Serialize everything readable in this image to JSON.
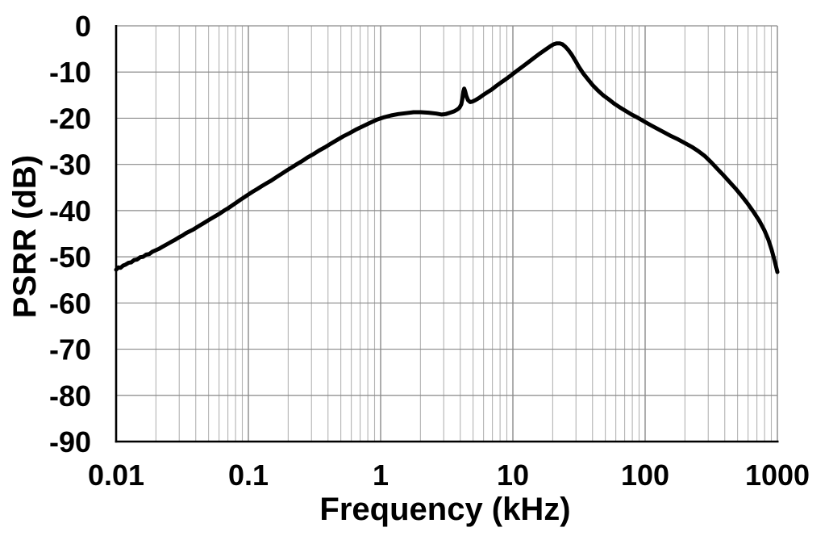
{
  "colors": {
    "background": "#ffffff",
    "curve": "#000000",
    "axis": "#000000",
    "grid_minor": "#b3b3b3",
    "grid_major": "#8a8a8a",
    "text": "#000000"
  },
  "chart_data": {
    "type": "line",
    "title": "",
    "xlabel": "Frequency (kHz)",
    "ylabel": "PSRR (dB)",
    "x_scale": "log",
    "xlim": [
      0.01,
      1000
    ],
    "ylim": [
      -90,
      0
    ],
    "grid": "on",
    "legend": "none",
    "x_ticks": [
      {
        "value": 0.01,
        "label": "0.01"
      },
      {
        "value": 0.1,
        "label": "0.1"
      },
      {
        "value": 1,
        "label": "1"
      },
      {
        "value": 10,
        "label": "10"
      },
      {
        "value": 100,
        "label": "100"
      },
      {
        "value": 1000,
        "label": "1000"
      }
    ],
    "y_ticks": [
      {
        "value": 0,
        "label": "0"
      },
      {
        "value": -10,
        "label": "-10"
      },
      {
        "value": -20,
        "label": "-20"
      },
      {
        "value": -30,
        "label": "-30"
      },
      {
        "value": -40,
        "label": "-40"
      },
      {
        "value": -50,
        "label": "-50"
      },
      {
        "value": -60,
        "label": "-60"
      },
      {
        "value": -70,
        "label": "-70"
      },
      {
        "value": -80,
        "label": "-80"
      },
      {
        "value": -90,
        "label": "-90"
      }
    ],
    "series": [
      {
        "name": "PSRR",
        "points": [
          [
            0.01,
            -52.8
          ],
          [
            0.0104,
            -52.3
          ],
          [
            0.0108,
            -52.4
          ],
          [
            0.0113,
            -51.9
          ],
          [
            0.0118,
            -51.7
          ],
          [
            0.0124,
            -51.3
          ],
          [
            0.013,
            -51.2
          ],
          [
            0.0137,
            -50.7
          ],
          [
            0.0144,
            -50.6
          ],
          [
            0.0152,
            -50.1
          ],
          [
            0.016,
            -50.0
          ],
          [
            0.0169,
            -49.5
          ],
          [
            0.0178,
            -49.4
          ],
          [
            0.0188,
            -48.9
          ],
          [
            0.0199,
            -48.6
          ],
          [
            0.021,
            -48.3
          ],
          [
            0.0222,
            -47.9
          ],
          [
            0.0235,
            -47.5
          ],
          [
            0.0249,
            -47.1
          ],
          [
            0.0264,
            -46.7
          ],
          [
            0.028,
            -46.3
          ],
          [
            0.0298,
            -45.8
          ],
          [
            0.0317,
            -45.4
          ],
          [
            0.0337,
            -44.9
          ],
          [
            0.0359,
            -44.5
          ],
          [
            0.0383,
            -44.1
          ],
          [
            0.0408,
            -43.6
          ],
          [
            0.0436,
            -43.1
          ],
          [
            0.0466,
            -42.6
          ],
          [
            0.0498,
            -42.1
          ],
          [
            0.0533,
            -41.6
          ],
          [
            0.057,
            -41.1
          ],
          [
            0.0611,
            -40.6
          ],
          [
            0.0655,
            -40.0
          ],
          [
            0.0702,
            -39.5
          ],
          [
            0.0753,
            -38.9
          ],
          [
            0.0808,
            -38.3
          ],
          [
            0.0867,
            -37.7
          ],
          [
            0.0931,
            -37.1
          ],
          [
            0.1,
            -36.5
          ],
          [
            0.108,
            -35.9
          ],
          [
            0.117,
            -35.3
          ],
          [
            0.126,
            -34.7
          ],
          [
            0.137,
            -34.1
          ],
          [
            0.149,
            -33.5
          ],
          [
            0.162,
            -32.8
          ],
          [
            0.177,
            -32.1
          ],
          [
            0.193,
            -31.4
          ],
          [
            0.211,
            -30.7
          ],
          [
            0.231,
            -30.0
          ],
          [
            0.254,
            -29.3
          ],
          [
            0.28,
            -28.5
          ],
          [
            0.309,
            -27.8
          ],
          [
            0.342,
            -27.0
          ],
          [
            0.379,
            -26.3
          ],
          [
            0.421,
            -25.5
          ],
          [
            0.469,
            -24.7
          ],
          [
            0.523,
            -23.9
          ],
          [
            0.585,
            -23.2
          ],
          [
            0.656,
            -22.4
          ],
          [
            0.737,
            -21.7
          ],
          [
            0.83,
            -21.0
          ],
          [
            0.937,
            -20.3
          ],
          [
            1.06,
            -19.8
          ],
          [
            1.2,
            -19.4
          ],
          [
            1.36,
            -19.1
          ],
          [
            1.55,
            -18.9
          ],
          [
            1.77,
            -18.7
          ],
          [
            2.02,
            -18.7
          ],
          [
            2.31,
            -18.8
          ],
          [
            2.64,
            -19.0
          ],
          [
            2.9,
            -19.2
          ],
          [
            3.1,
            -19.1
          ],
          [
            3.35,
            -18.8
          ],
          [
            3.6,
            -18.5
          ],
          [
            3.8,
            -18.1
          ],
          [
            3.95,
            -17.7
          ],
          [
            4.07,
            -17.0
          ],
          [
            4.15,
            -15.8
          ],
          [
            4.22,
            -14.2
          ],
          [
            4.28,
            -13.6
          ],
          [
            4.35,
            -14.1
          ],
          [
            4.45,
            -15.2
          ],
          [
            4.58,
            -16.1
          ],
          [
            4.75,
            -16.5
          ],
          [
            4.95,
            -16.4
          ],
          [
            5.2,
            -16.1
          ],
          [
            5.55,
            -15.6
          ],
          [
            5.95,
            -15.0
          ],
          [
            6.4,
            -14.4
          ],
          [
            6.9,
            -13.8
          ],
          [
            7.5,
            -13.0
          ],
          [
            8.2,
            -12.2
          ],
          [
            9.0,
            -11.4
          ],
          [
            9.9,
            -10.5
          ],
          [
            10.9,
            -9.6
          ],
          [
            12.0,
            -8.7
          ],
          [
            13.2,
            -7.8
          ],
          [
            14.5,
            -6.9
          ],
          [
            16.0,
            -6.0
          ],
          [
            17.5,
            -5.2
          ],
          [
            19.0,
            -4.5
          ],
          [
            20.3,
            -4.0
          ],
          [
            21.5,
            -3.8
          ],
          [
            22.6,
            -3.8
          ],
          [
            23.7,
            -4.0
          ],
          [
            24.9,
            -4.5
          ],
          [
            26.2,
            -5.2
          ],
          [
            27.8,
            -6.2
          ],
          [
            29.6,
            -7.5
          ],
          [
            31.6,
            -8.9
          ],
          [
            34,
            -10.3
          ],
          [
            37,
            -11.6
          ],
          [
            40,
            -12.8
          ],
          [
            44,
            -14.0
          ],
          [
            48,
            -15.0
          ],
          [
            53,
            -15.9
          ],
          [
            58,
            -16.8
          ],
          [
            64,
            -17.6
          ],
          [
            71,
            -18.4
          ],
          [
            79,
            -19.2
          ],
          [
            88,
            -19.9
          ],
          [
            98,
            -20.7
          ],
          [
            110,
            -21.5
          ],
          [
            124,
            -22.3
          ],
          [
            140,
            -23.1
          ],
          [
            158,
            -23.9
          ],
          [
            178,
            -24.6
          ],
          [
            200,
            -25.4
          ],
          [
            225,
            -26.2
          ],
          [
            252,
            -27.1
          ],
          [
            283,
            -28.2
          ],
          [
            315,
            -29.5
          ],
          [
            350,
            -30.9
          ],
          [
            390,
            -32.3
          ],
          [
            435,
            -33.8
          ],
          [
            485,
            -35.3
          ],
          [
            540,
            -36.9
          ],
          [
            600,
            -38.6
          ],
          [
            665,
            -40.4
          ],
          [
            730,
            -42.2
          ],
          [
            795,
            -44.2
          ],
          [
            855,
            -46.3
          ],
          [
            905,
            -48.5
          ],
          [
            945,
            -50.5
          ],
          [
            975,
            -52.0
          ],
          [
            1000,
            -53.3
          ]
        ]
      }
    ]
  }
}
